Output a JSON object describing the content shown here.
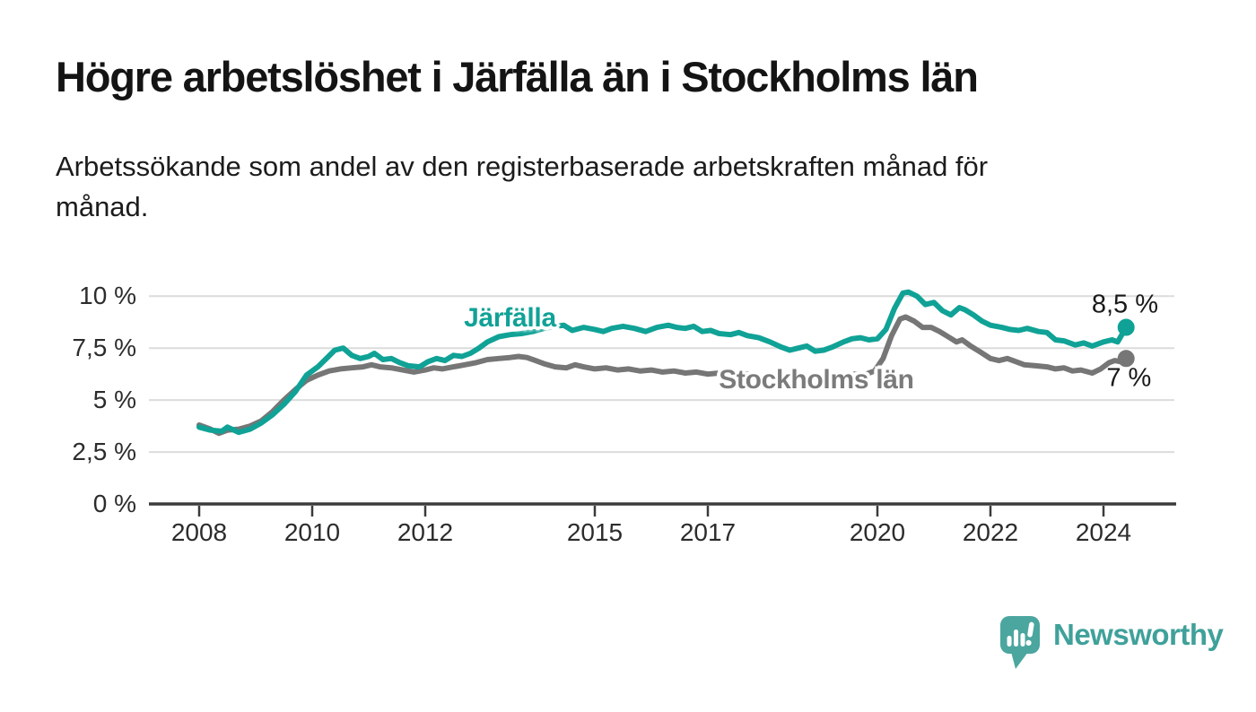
{
  "header": {
    "title": "Högre arbetslöshet i Järfälla än i Stockholms län",
    "subtitle": "Arbetssökande som andel av den registerbaserade arbetskraften månad för\nmånad."
  },
  "chart_data": {
    "type": "line",
    "title": "Högre arbetslöshet i Järfälla än i Stockholms län",
    "subtitle": "Arbetssökande som andel av den registerbaserade arbetskraften månad för månad.",
    "xlabel": "",
    "ylabel": "",
    "x_unit": "year",
    "y_unit": "%",
    "xlim": [
      2007.1,
      2025.3
    ],
    "ylim": [
      0,
      10.7
    ],
    "grid": "horizontal",
    "legend": "inline-labels",
    "x_ticks": [
      2008,
      2010,
      2012,
      2015,
      2017,
      2020,
      2022,
      2024
    ],
    "x_tick_labels": [
      "2008",
      "2010",
      "2012",
      "2015",
      "2017",
      "2020",
      "2022",
      "2024"
    ],
    "y_ticks": [
      0,
      2.5,
      5,
      7.5,
      10
    ],
    "y_tick_labels": [
      "0 %",
      "2,5 %",
      "5 %",
      "7,5 %",
      "10 %"
    ],
    "series": [
      {
        "name": "Stockholms län",
        "color": "#767676",
        "end_value": 7.0,
        "end_label": "7 %",
        "points": [
          [
            2008.0,
            3.8
          ],
          [
            2008.2,
            3.6
          ],
          [
            2008.35,
            3.4
          ],
          [
            2008.5,
            3.55
          ],
          [
            2008.7,
            3.6
          ],
          [
            2008.9,
            3.75
          ],
          [
            2009.1,
            4.0
          ],
          [
            2009.3,
            4.45
          ],
          [
            2009.5,
            5.0
          ],
          [
            2009.7,
            5.5
          ],
          [
            2009.9,
            5.95
          ],
          [
            2010.1,
            6.2
          ],
          [
            2010.3,
            6.4
          ],
          [
            2010.5,
            6.5
          ],
          [
            2010.7,
            6.55
          ],
          [
            2010.9,
            6.6
          ],
          [
            2011.05,
            6.7
          ],
          [
            2011.2,
            6.6
          ],
          [
            2011.4,
            6.55
          ],
          [
            2011.6,
            6.45
          ],
          [
            2011.8,
            6.35
          ],
          [
            2012.0,
            6.45
          ],
          [
            2012.15,
            6.55
          ],
          [
            2012.3,
            6.5
          ],
          [
            2012.5,
            6.6
          ],
          [
            2012.7,
            6.7
          ],
          [
            2012.9,
            6.8
          ],
          [
            2013.1,
            6.95
          ],
          [
            2013.3,
            7.0
          ],
          [
            2013.5,
            7.05
          ],
          [
            2013.65,
            7.1
          ],
          [
            2013.8,
            7.05
          ],
          [
            2013.95,
            6.9
          ],
          [
            2014.1,
            6.75
          ],
          [
            2014.3,
            6.6
          ],
          [
            2014.5,
            6.55
          ],
          [
            2014.65,
            6.7
          ],
          [
            2014.8,
            6.6
          ],
          [
            2015.0,
            6.5
          ],
          [
            2015.2,
            6.55
          ],
          [
            2015.4,
            6.45
          ],
          [
            2015.6,
            6.5
          ],
          [
            2015.8,
            6.4
          ],
          [
            2016.0,
            6.45
          ],
          [
            2016.2,
            6.35
          ],
          [
            2016.4,
            6.4
          ],
          [
            2016.6,
            6.3
          ],
          [
            2016.8,
            6.35
          ],
          [
            2017.0,
            6.25
          ],
          [
            2017.2,
            6.3
          ],
          [
            2017.4,
            6.2
          ],
          [
            2017.6,
            6.3
          ],
          [
            2017.8,
            6.2
          ],
          [
            2018.0,
            6.15
          ],
          [
            2018.2,
            6.2
          ],
          [
            2018.4,
            6.15
          ],
          [
            2018.6,
            6.25
          ],
          [
            2018.8,
            6.15
          ],
          [
            2019.0,
            6.2
          ],
          [
            2019.2,
            6.15
          ],
          [
            2019.4,
            6.2
          ],
          [
            2019.6,
            6.25
          ],
          [
            2019.8,
            6.25
          ],
          [
            2019.95,
            6.4
          ],
          [
            2020.1,
            7.0
          ],
          [
            2020.25,
            8.1
          ],
          [
            2020.4,
            8.9
          ],
          [
            2020.5,
            9.0
          ],
          [
            2020.65,
            8.8
          ],
          [
            2020.8,
            8.5
          ],
          [
            2020.95,
            8.5
          ],
          [
            2021.1,
            8.3
          ],
          [
            2021.25,
            8.05
          ],
          [
            2021.4,
            7.8
          ],
          [
            2021.5,
            7.9
          ],
          [
            2021.65,
            7.6
          ],
          [
            2021.8,
            7.35
          ],
          [
            2022.0,
            7.0
          ],
          [
            2022.15,
            6.9
          ],
          [
            2022.3,
            7.0
          ],
          [
            2022.45,
            6.85
          ],
          [
            2022.6,
            6.7
          ],
          [
            2022.8,
            6.65
          ],
          [
            2023.0,
            6.6
          ],
          [
            2023.15,
            6.5
          ],
          [
            2023.3,
            6.55
          ],
          [
            2023.45,
            6.4
          ],
          [
            2023.6,
            6.45
          ],
          [
            2023.8,
            6.3
          ],
          [
            2023.95,
            6.5
          ],
          [
            2024.1,
            6.8
          ],
          [
            2024.2,
            6.9
          ],
          [
            2024.3,
            6.85
          ],
          [
            2024.4,
            7.0
          ]
        ]
      },
      {
        "name": "Järfälla",
        "color": "#10a296",
        "end_value": 8.5,
        "end_label": "8,5 %",
        "points": [
          [
            2008.0,
            3.7
          ],
          [
            2008.2,
            3.55
          ],
          [
            2008.4,
            3.5
          ],
          [
            2008.5,
            3.7
          ],
          [
            2008.7,
            3.45
          ],
          [
            2008.9,
            3.6
          ],
          [
            2009.1,
            3.9
          ],
          [
            2009.3,
            4.3
          ],
          [
            2009.5,
            4.8
          ],
          [
            2009.7,
            5.4
          ],
          [
            2009.9,
            6.2
          ],
          [
            2010.1,
            6.6
          ],
          [
            2010.25,
            7.0
          ],
          [
            2010.4,
            7.4
          ],
          [
            2010.55,
            7.5
          ],
          [
            2010.7,
            7.15
          ],
          [
            2010.85,
            7.0
          ],
          [
            2011.0,
            7.1
          ],
          [
            2011.1,
            7.25
          ],
          [
            2011.25,
            6.95
          ],
          [
            2011.4,
            7.0
          ],
          [
            2011.55,
            6.8
          ],
          [
            2011.7,
            6.65
          ],
          [
            2011.9,
            6.6
          ],
          [
            2012.05,
            6.85
          ],
          [
            2012.2,
            7.0
          ],
          [
            2012.35,
            6.9
          ],
          [
            2012.5,
            7.15
          ],
          [
            2012.65,
            7.1
          ],
          [
            2012.8,
            7.25
          ],
          [
            2012.95,
            7.5
          ],
          [
            2013.1,
            7.8
          ],
          [
            2013.3,
            8.05
          ],
          [
            2013.5,
            8.15
          ],
          [
            2013.7,
            8.2
          ],
          [
            2013.9,
            8.3
          ],
          [
            2014.1,
            8.45
          ],
          [
            2014.3,
            8.55
          ],
          [
            2014.45,
            8.6
          ],
          [
            2014.6,
            8.35
          ],
          [
            2014.8,
            8.5
          ],
          [
            2015.0,
            8.4
          ],
          [
            2015.15,
            8.3
          ],
          [
            2015.3,
            8.45
          ],
          [
            2015.5,
            8.55
          ],
          [
            2015.7,
            8.45
          ],
          [
            2015.9,
            8.3
          ],
          [
            2016.1,
            8.5
          ],
          [
            2016.3,
            8.6
          ],
          [
            2016.45,
            8.5
          ],
          [
            2016.6,
            8.45
          ],
          [
            2016.75,
            8.55
          ],
          [
            2016.9,
            8.3
          ],
          [
            2017.05,
            8.35
          ],
          [
            2017.2,
            8.2
          ],
          [
            2017.4,
            8.15
          ],
          [
            2017.55,
            8.25
          ],
          [
            2017.7,
            8.1
          ],
          [
            2017.9,
            8.0
          ],
          [
            2018.1,
            7.8
          ],
          [
            2018.3,
            7.55
          ],
          [
            2018.45,
            7.4
          ],
          [
            2018.6,
            7.5
          ],
          [
            2018.75,
            7.6
          ],
          [
            2018.9,
            7.35
          ],
          [
            2019.05,
            7.4
          ],
          [
            2019.2,
            7.55
          ],
          [
            2019.4,
            7.8
          ],
          [
            2019.55,
            7.95
          ],
          [
            2019.7,
            8.0
          ],
          [
            2019.85,
            7.9
          ],
          [
            2020.0,
            7.95
          ],
          [
            2020.15,
            8.4
          ],
          [
            2020.3,
            9.4
          ],
          [
            2020.45,
            10.15
          ],
          [
            2020.55,
            10.2
          ],
          [
            2020.7,
            10.0
          ],
          [
            2020.85,
            9.6
          ],
          [
            2021.0,
            9.7
          ],
          [
            2021.15,
            9.3
          ],
          [
            2021.3,
            9.1
          ],
          [
            2021.45,
            9.45
          ],
          [
            2021.55,
            9.35
          ],
          [
            2021.7,
            9.1
          ],
          [
            2021.85,
            8.8
          ],
          [
            2022.0,
            8.6
          ],
          [
            2022.2,
            8.5
          ],
          [
            2022.35,
            8.4
          ],
          [
            2022.5,
            8.35
          ],
          [
            2022.65,
            8.45
          ],
          [
            2022.85,
            8.3
          ],
          [
            2023.0,
            8.25
          ],
          [
            2023.15,
            7.9
          ],
          [
            2023.3,
            7.85
          ],
          [
            2023.5,
            7.65
          ],
          [
            2023.65,
            7.75
          ],
          [
            2023.8,
            7.6
          ],
          [
            2024.0,
            7.8
          ],
          [
            2024.15,
            7.9
          ],
          [
            2024.25,
            7.8
          ],
          [
            2024.4,
            8.5
          ]
        ]
      }
    ],
    "annotations": [
      {
        "text": "Järfälla",
        "x": 2013.5,
        "y": 8.95,
        "color": "#10a296",
        "bold": true,
        "halo": true
      },
      {
        "text": "Stockholms län",
        "x": 2018.92,
        "y": 5.95,
        "color": "#7b7b7b",
        "bold": true,
        "halo": true
      },
      {
        "text": "8,5 %",
        "x": 2024.38,
        "y": 9.58,
        "color": "#1a1a1a",
        "bold": false,
        "halo": false
      },
      {
        "text": "7 %",
        "x": 2024.45,
        "y": 6.05,
        "color": "#1a1a1a",
        "bold": false,
        "halo": false
      }
    ]
  },
  "footer": {
    "brand": "Newsworthy"
  },
  "colors": {
    "jarfalla_line": "#10a296",
    "stockholm_line": "#767676",
    "gridline": "#dcdcdc",
    "axis": "#3b3b3b",
    "tick_text": "#2c2c2c",
    "title_text": "#141414",
    "brand_text": "#3fa19a",
    "logo_fill": "#4ba69f"
  }
}
